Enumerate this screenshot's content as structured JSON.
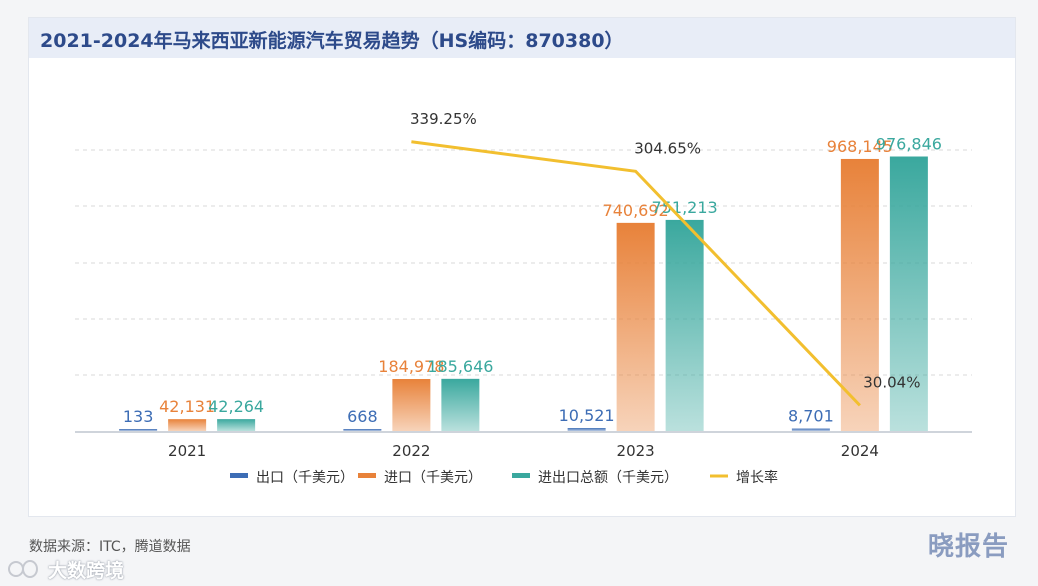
{
  "title": "2021-2024年马来西亚新能源汽车贸易趋势（HS编码：870380）",
  "footer": {
    "source": "数据来源：ITC，腾道数据",
    "brand_right": "晓报告",
    "brand_left": "大数跨境"
  },
  "colors": {
    "export": "#3d6db5",
    "import": "#e8823a",
    "total": "#3aa89e",
    "growth": "#f2bf2f",
    "grid": "#d9d9d9",
    "axis": "#bfc5cf",
    "label_text": "#444444"
  },
  "chart_data": {
    "type": "bar",
    "categories": [
      "2021",
      "2022",
      "2023",
      "2024"
    ],
    "series": [
      {
        "name": "出口（千美元）",
        "key": "export",
        "values": [
          133,
          668,
          10521,
          8701
        ],
        "labels": [
          "133",
          "668",
          "10,521",
          "8,701"
        ]
      },
      {
        "name": "进口（千美元）",
        "key": "import",
        "values": [
          42131,
          184978,
          740692,
          968145
        ],
        "labels": [
          "42,131",
          "184,978",
          "740,692",
          "968,145"
        ]
      },
      {
        "name": "进出口总额（千美元）",
        "key": "total",
        "values": [
          42264,
          185646,
          751213,
          976846
        ],
        "labels": [
          "42,264",
          "185,646",
          "751,213",
          "976,846"
        ]
      }
    ],
    "line_series": {
      "name": "增长率",
      "key": "growth",
      "categories": [
        "2022",
        "2023",
        "2024"
      ],
      "values": [
        339.25,
        304.65,
        30.04
      ],
      "labels": [
        "339.25%",
        "304.65%",
        "30.04%"
      ]
    },
    "ylim": [
      0,
      1200000
    ],
    "y2lim": [
      0,
      400
    ],
    "grid": "horizontal-dashed",
    "legend": "bottom"
  }
}
